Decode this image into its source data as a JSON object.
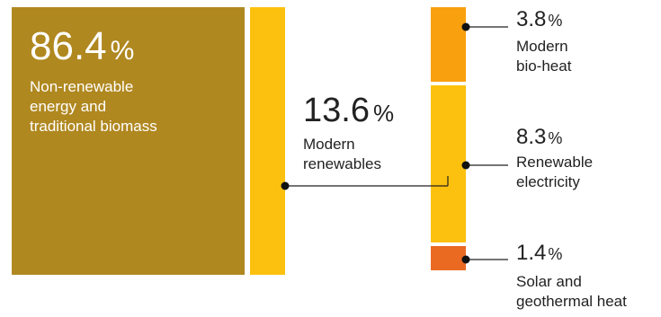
{
  "chart_data": {
    "type": "bar",
    "segments": [
      {
        "value": 86.4,
        "unit": "%",
        "label": "Non-renewable energy and traditional biomass",
        "color": "#b08820"
      },
      {
        "value": 13.6,
        "unit": "%",
        "label": "Modern renewables",
        "color": "#fcc10e"
      }
    ],
    "breakdown": [
      {
        "value": 3.8,
        "unit": "%",
        "label": "Modern bio-heat",
        "color": "#f9a00f"
      },
      {
        "value": 8.3,
        "unit": "%",
        "label": "Renewable electricity",
        "color": "#fcc10e"
      },
      {
        "value": 1.4,
        "unit": "%",
        "label": "Solar and geothermal heat",
        "color": "#ea6a22"
      }
    ]
  },
  "labels": {
    "nonren": {
      "value": "86.4",
      "sign": "%",
      "line1": "Non-renewable",
      "line2": "energy and",
      "line3": "traditional biomass"
    },
    "modern": {
      "value": "13.6",
      "sign": "%",
      "line1": "Modern",
      "line2": "renewables"
    },
    "bio": {
      "value": "3.8",
      "sign": "%",
      "line1": "Modern",
      "line2": "bio-heat"
    },
    "elec": {
      "value": "8.3",
      "sign": "%",
      "line1": "Renewable",
      "line2": "electricity"
    },
    "solar": {
      "value": "1.4",
      "sign": "%",
      "line1": "Solar and",
      "line2": "geothermal heat"
    }
  }
}
